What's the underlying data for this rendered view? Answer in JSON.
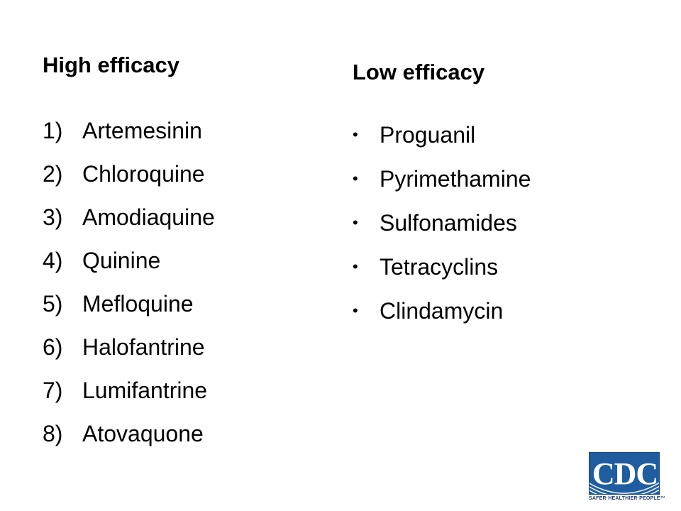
{
  "high_efficacy": {
    "heading": "High efficacy",
    "items": [
      {
        "number": "1)",
        "name": "Artemesinin"
      },
      {
        "number": "2)",
        "name": "Chloroquine"
      },
      {
        "number": "3)",
        "name": "Amodiaquine"
      },
      {
        "number": "4)",
        "name": "Quinine"
      },
      {
        "number": "5)",
        "name": "Mefloquine"
      },
      {
        "number": "6)",
        "name": "Halofantrine"
      },
      {
        "number": "7)",
        "name": "Lumifantrine"
      },
      {
        "number": "8)",
        "name": "Atovaquone"
      }
    ]
  },
  "low_efficacy": {
    "heading": "Low efficacy",
    "bullet": "•",
    "items": [
      {
        "name": "Proguanil"
      },
      {
        "name": "Pyrimethamine"
      },
      {
        "name": "Sulfonamides"
      },
      {
        "name": "Tetracyclins"
      },
      {
        "name": "Clindamycin"
      }
    ]
  },
  "logo": {
    "text": "CDC",
    "tagline": "SAFER·HEALTHIER·PEOPLE™",
    "brand_color": "#1f5da0"
  }
}
